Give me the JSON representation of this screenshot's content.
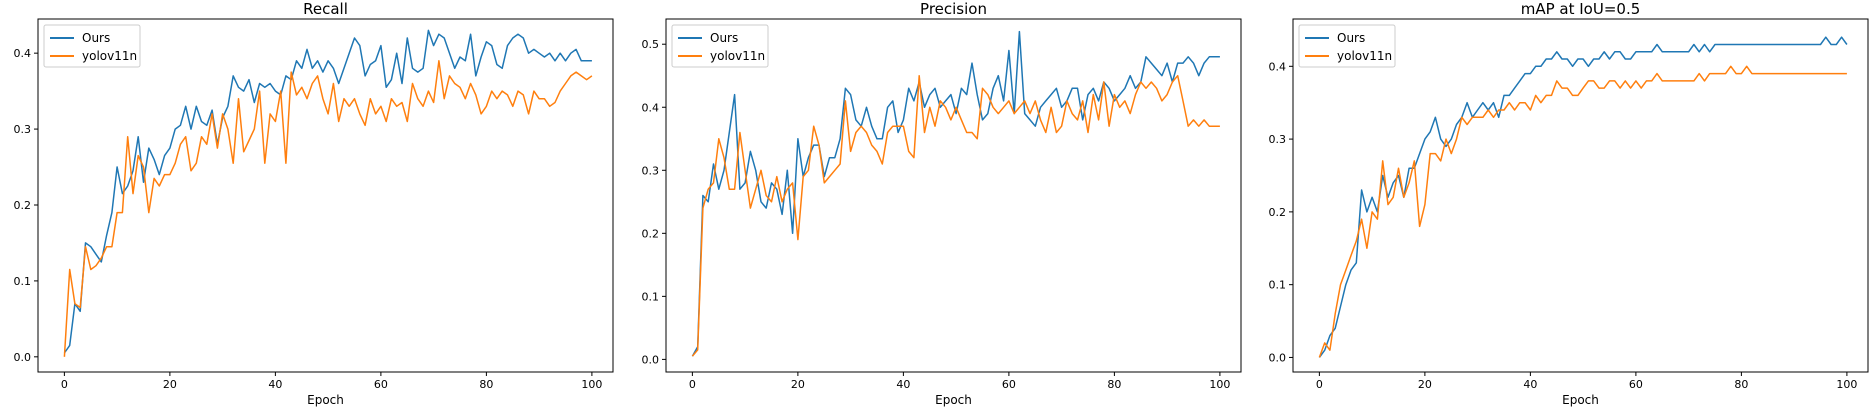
{
  "figure": {
    "colors": {
      "ours": "#1f77b4",
      "yolov11n": "#ff7f0e",
      "axis": "#000000",
      "legend_border": "#cccccc"
    }
  },
  "chart_data": [
    {
      "type": "line",
      "title": "Recall",
      "xlabel": "Epoch",
      "ylabel": "",
      "xlim": [
        -5,
        104
      ],
      "ylim": [
        -0.02,
        0.445
      ],
      "xticks": [
        0,
        20,
        40,
        60,
        80,
        100
      ],
      "yticks": [
        0.0,
        0.1,
        0.2,
        0.3,
        0.4
      ],
      "xtick_labels": [
        "0",
        "20",
        "40",
        "60",
        "80",
        "100"
      ],
      "ytick_labels": [
        "0.0",
        "0.1",
        "0.2",
        "0.3",
        "0.4"
      ],
      "grid": false,
      "legend": "top-left",
      "series": [
        {
          "name": "Ours",
          "values": [
            0.005,
            0.015,
            0.07,
            0.06,
            0.15,
            0.145,
            0.135,
            0.125,
            0.16,
            0.19,
            0.25,
            0.215,
            0.225,
            0.245,
            0.29,
            0.23,
            0.275,
            0.26,
            0.24,
            0.265,
            0.275,
            0.3,
            0.305,
            0.33,
            0.3,
            0.33,
            0.31,
            0.305,
            0.325,
            0.28,
            0.315,
            0.33,
            0.37,
            0.355,
            0.35,
            0.365,
            0.335,
            0.36,
            0.355,
            0.36,
            0.35,
            0.345,
            0.37,
            0.365,
            0.39,
            0.38,
            0.405,
            0.38,
            0.39,
            0.375,
            0.39,
            0.38,
            0.36,
            0.38,
            0.4,
            0.42,
            0.41,
            0.37,
            0.385,
            0.39,
            0.41,
            0.355,
            0.365,
            0.4,
            0.36,
            0.42,
            0.38,
            0.375,
            0.38,
            0.43,
            0.41,
            0.425,
            0.42,
            0.4,
            0.38,
            0.395,
            0.39,
            0.425,
            0.37,
            0.395,
            0.415,
            0.41,
            0.385,
            0.38,
            0.41,
            0.42,
            0.425,
            0.42,
            0.4,
            0.405,
            0.4,
            0.395,
            0.4,
            0.39,
            0.4,
            0.39,
            0.4,
            0.405,
            0.39,
            0.39,
            0.39
          ]
        },
        {
          "name": "yolov11n",
          "values": [
            0.0,
            0.115,
            0.07,
            0.065,
            0.145,
            0.115,
            0.12,
            0.13,
            0.145,
            0.145,
            0.19,
            0.19,
            0.29,
            0.215,
            0.265,
            0.25,
            0.19,
            0.235,
            0.225,
            0.24,
            0.24,
            0.255,
            0.28,
            0.29,
            0.245,
            0.255,
            0.29,
            0.28,
            0.32,
            0.275,
            0.32,
            0.3,
            0.255,
            0.34,
            0.27,
            0.285,
            0.3,
            0.35,
            0.255,
            0.32,
            0.31,
            0.35,
            0.255,
            0.375,
            0.345,
            0.355,
            0.34,
            0.36,
            0.37,
            0.34,
            0.32,
            0.36,
            0.31,
            0.34,
            0.33,
            0.34,
            0.32,
            0.305,
            0.34,
            0.32,
            0.33,
            0.31,
            0.34,
            0.33,
            0.335,
            0.31,
            0.36,
            0.34,
            0.33,
            0.35,
            0.335,
            0.39,
            0.34,
            0.37,
            0.36,
            0.355,
            0.34,
            0.36,
            0.345,
            0.32,
            0.33,
            0.35,
            0.34,
            0.35,
            0.345,
            0.33,
            0.35,
            0.345,
            0.32,
            0.35,
            0.34,
            0.34,
            0.33,
            0.335,
            0.35,
            0.36,
            0.37,
            0.375,
            0.37,
            0.365,
            0.37
          ]
        }
      ]
    },
    {
      "type": "line",
      "title": "Precision",
      "xlabel": "Epoch",
      "ylabel": "",
      "xlim": [
        -5,
        104
      ],
      "ylim": [
        -0.02,
        0.54
      ],
      "xticks": [
        0,
        20,
        40,
        60,
        80,
        100
      ],
      "yticks": [
        0.0,
        0.1,
        0.2,
        0.3,
        0.4,
        0.5
      ],
      "xtick_labels": [
        "0",
        "20",
        "40",
        "60",
        "80",
        "100"
      ],
      "ytick_labels": [
        "0.0",
        "0.1",
        "0.2",
        "0.3",
        "0.4",
        "0.5"
      ],
      "grid": false,
      "legend": "top-left",
      "series": [
        {
          "name": "Ours",
          "values": [
            0.005,
            0.02,
            0.26,
            0.25,
            0.31,
            0.27,
            0.3,
            0.36,
            0.42,
            0.27,
            0.28,
            0.33,
            0.3,
            0.25,
            0.24,
            0.28,
            0.27,
            0.23,
            0.3,
            0.2,
            0.35,
            0.29,
            0.32,
            0.34,
            0.34,
            0.29,
            0.32,
            0.32,
            0.35,
            0.43,
            0.42,
            0.38,
            0.37,
            0.4,
            0.37,
            0.35,
            0.35,
            0.4,
            0.41,
            0.36,
            0.38,
            0.43,
            0.41,
            0.44,
            0.4,
            0.42,
            0.43,
            0.4,
            0.41,
            0.42,
            0.39,
            0.43,
            0.42,
            0.47,
            0.42,
            0.38,
            0.39,
            0.43,
            0.45,
            0.41,
            0.49,
            0.39,
            0.52,
            0.39,
            0.38,
            0.37,
            0.4,
            0.41,
            0.42,
            0.43,
            0.4,
            0.41,
            0.43,
            0.43,
            0.38,
            0.42,
            0.43,
            0.41,
            0.44,
            0.43,
            0.41,
            0.42,
            0.43,
            0.45,
            0.43,
            0.44,
            0.48,
            0.47,
            0.46,
            0.45,
            0.47,
            0.44,
            0.47,
            0.47,
            0.48,
            0.47,
            0.45,
            0.47,
            0.48,
            0.48,
            0.48
          ]
        },
        {
          "name": "yolov11n",
          "values": [
            0.005,
            0.015,
            0.24,
            0.27,
            0.28,
            0.35,
            0.32,
            0.27,
            0.27,
            0.36,
            0.3,
            0.24,
            0.27,
            0.3,
            0.26,
            0.25,
            0.29,
            0.25,
            0.27,
            0.28,
            0.19,
            0.29,
            0.3,
            0.37,
            0.34,
            0.28,
            0.29,
            0.3,
            0.31,
            0.41,
            0.33,
            0.36,
            0.37,
            0.36,
            0.34,
            0.33,
            0.31,
            0.36,
            0.37,
            0.37,
            0.37,
            0.33,
            0.32,
            0.45,
            0.36,
            0.4,
            0.37,
            0.41,
            0.4,
            0.38,
            0.4,
            0.38,
            0.36,
            0.36,
            0.35,
            0.43,
            0.42,
            0.4,
            0.39,
            0.4,
            0.41,
            0.39,
            0.4,
            0.41,
            0.39,
            0.41,
            0.38,
            0.36,
            0.4,
            0.36,
            0.37,
            0.41,
            0.39,
            0.38,
            0.41,
            0.36,
            0.42,
            0.38,
            0.44,
            0.37,
            0.42,
            0.4,
            0.41,
            0.39,
            0.42,
            0.44,
            0.43,
            0.44,
            0.43,
            0.41,
            0.42,
            0.44,
            0.45,
            0.41,
            0.37,
            0.38,
            0.37,
            0.38,
            0.37,
            0.37,
            0.37
          ]
        }
      ]
    },
    {
      "type": "line",
      "title": "mAP at IoU=0.5",
      "xlabel": "Epoch",
      "ylabel": "",
      "xlim": [
        -5,
        104
      ],
      "ylim": [
        -0.02,
        0.465
      ],
      "xticks": [
        0,
        20,
        40,
        60,
        80,
        100
      ],
      "yticks": [
        0.0,
        0.1,
        0.2,
        0.3,
        0.4
      ],
      "xtick_labels": [
        "0",
        "20",
        "40",
        "60",
        "80",
        "100"
      ],
      "ytick_labels": [
        "0.0",
        "0.1",
        "0.2",
        "0.3",
        "0.4"
      ],
      "grid": false,
      "legend": "top-left",
      "series": [
        {
          "name": "Ours",
          "values": [
            0.0,
            0.01,
            0.03,
            0.04,
            0.07,
            0.1,
            0.12,
            0.13,
            0.23,
            0.2,
            0.22,
            0.2,
            0.25,
            0.22,
            0.24,
            0.25,
            0.22,
            0.26,
            0.26,
            0.28,
            0.3,
            0.31,
            0.33,
            0.3,
            0.29,
            0.3,
            0.32,
            0.33,
            0.35,
            0.33,
            0.34,
            0.35,
            0.34,
            0.35,
            0.33,
            0.36,
            0.36,
            0.37,
            0.38,
            0.39,
            0.39,
            0.4,
            0.4,
            0.41,
            0.41,
            0.42,
            0.41,
            0.41,
            0.4,
            0.41,
            0.41,
            0.4,
            0.41,
            0.41,
            0.42,
            0.41,
            0.42,
            0.42,
            0.41,
            0.41,
            0.42,
            0.42,
            0.42,
            0.42,
            0.43,
            0.42,
            0.42,
            0.42,
            0.42,
            0.42,
            0.42,
            0.43,
            0.42,
            0.43,
            0.42,
            0.43,
            0.43,
            0.43,
            0.43,
            0.43,
            0.43,
            0.43,
            0.43,
            0.43,
            0.43,
            0.43,
            0.43,
            0.43,
            0.43,
            0.43,
            0.43,
            0.43,
            0.43,
            0.43,
            0.43,
            0.43,
            0.44,
            0.43,
            0.43,
            0.44,
            0.43
          ]
        },
        {
          "name": "yolov11n",
          "values": [
            0.0,
            0.02,
            0.01,
            0.06,
            0.1,
            0.12,
            0.14,
            0.16,
            0.19,
            0.15,
            0.2,
            0.19,
            0.27,
            0.21,
            0.22,
            0.26,
            0.22,
            0.24,
            0.27,
            0.18,
            0.21,
            0.28,
            0.28,
            0.27,
            0.3,
            0.28,
            0.3,
            0.33,
            0.32,
            0.33,
            0.33,
            0.33,
            0.34,
            0.33,
            0.34,
            0.34,
            0.35,
            0.34,
            0.35,
            0.35,
            0.34,
            0.36,
            0.35,
            0.36,
            0.36,
            0.38,
            0.37,
            0.37,
            0.36,
            0.36,
            0.37,
            0.38,
            0.38,
            0.37,
            0.37,
            0.38,
            0.38,
            0.37,
            0.38,
            0.37,
            0.38,
            0.37,
            0.38,
            0.38,
            0.39,
            0.38,
            0.38,
            0.38,
            0.38,
            0.38,
            0.38,
            0.38,
            0.39,
            0.38,
            0.39,
            0.39,
            0.39,
            0.39,
            0.4,
            0.39,
            0.39,
            0.4,
            0.39,
            0.39,
            0.39,
            0.39,
            0.39,
            0.39,
            0.39,
            0.39,
            0.39,
            0.39,
            0.39,
            0.39,
            0.39,
            0.39,
            0.39,
            0.39,
            0.39,
            0.39,
            0.39
          ]
        }
      ]
    }
  ]
}
